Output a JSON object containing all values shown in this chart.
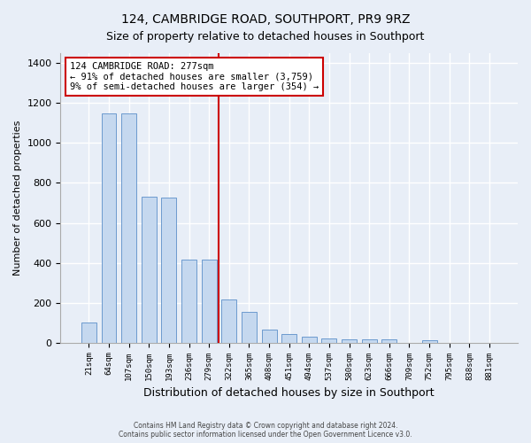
{
  "title": "124, CAMBRIDGE ROAD, SOUTHPORT, PR9 9RZ",
  "subtitle": "Size of property relative to detached houses in Southport",
  "xlabel": "Distribution of detached houses by size in Southport",
  "ylabel": "Number of detached properties",
  "categories": [
    "21sqm",
    "64sqm",
    "107sqm",
    "150sqm",
    "193sqm",
    "236sqm",
    "279sqm",
    "322sqm",
    "365sqm",
    "408sqm",
    "451sqm",
    "494sqm",
    "537sqm",
    "580sqm",
    "623sqm",
    "666sqm",
    "709sqm",
    "752sqm",
    "795sqm",
    "838sqm",
    "881sqm"
  ],
  "values": [
    100,
    1150,
    1150,
    730,
    725,
    415,
    415,
    215,
    155,
    65,
    45,
    30,
    20,
    15,
    15,
    15,
    0,
    10,
    0,
    0,
    0
  ],
  "bar_color": "#c5d8ef",
  "bar_edge_color": "#5b8fc9",
  "red_line_x": 6.5,
  "annotation_line1": "124 CAMBRIDGE ROAD: 277sqm",
  "annotation_line2": "← 91% of detached houses are smaller (3,759)",
  "annotation_line3": "9% of semi-detached houses are larger (354) →",
  "annotation_box_color": "#ffffff",
  "annotation_box_edge_color": "#cc0000",
  "red_line_color": "#cc0000",
  "ylim": [
    0,
    1450
  ],
  "yticks": [
    0,
    200,
    400,
    600,
    800,
    1000,
    1200,
    1400
  ],
  "footer1": "Contains HM Land Registry data © Crown copyright and database right 2024.",
  "footer2": "Contains public sector information licensed under the Open Government Licence v3.0.",
  "bg_color": "#e8eef7",
  "plot_bg_color": "#e8eef7",
  "title_fontsize": 10,
  "subtitle_fontsize": 9,
  "bar_width": 0.75
}
